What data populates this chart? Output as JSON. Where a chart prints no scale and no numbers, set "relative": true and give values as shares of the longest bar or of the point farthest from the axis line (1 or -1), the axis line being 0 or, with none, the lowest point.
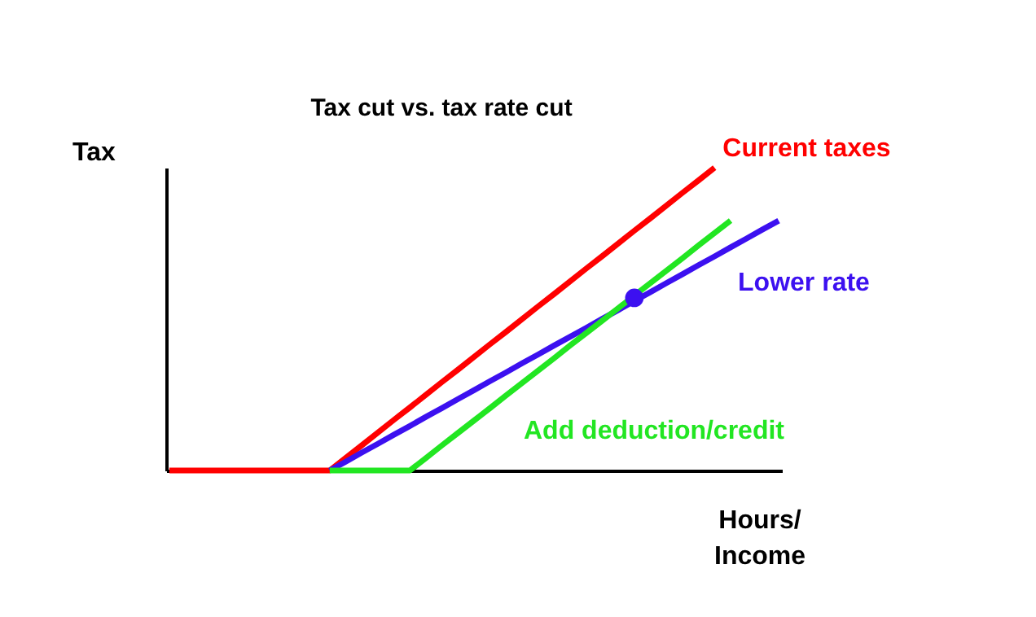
{
  "chart_data": {
    "type": "line",
    "title": "Tax cut vs. tax rate cut",
    "xlabel": "Hours/\nIncome",
    "ylabel": "Tax",
    "relative": true,
    "line_style": "solid",
    "categories": [
      null,
      null,
      null,
      null,
      null,
      null,
      null,
      null,
      null,
      null,
      null,
      null,
      null,
      null,
      null,
      null,
      null,
      null,
      null,
      null,
      null,
      null,
      null,
      null,
      null,
      null,
      null,
      null,
      null,
      null,
      null,
      null,
      null,
      null,
      null,
      null,
      null,
      null,
      null
    ],
    "series": [
      {
        "name": "Current taxes",
        "color": "#ff0000",
        "values": [
          0,
          0,
          0,
          0,
          0,
          0,
          0,
          0,
          0,
          0,
          0,
          0.042,
          0.083,
          0.125,
          0.167,
          0.208,
          0.25,
          0.292,
          0.333,
          0.375,
          0.417,
          0.458,
          0.5,
          0.542,
          0.583,
          0.625,
          0.667,
          0.708,
          0.75,
          0.792,
          0.833,
          0.875,
          0.917,
          0.958,
          1,
          null,
          null,
          null,
          null
        ]
      },
      {
        "name": "Lower rate",
        "color": "#3c10f0",
        "values": [
          null,
          null,
          null,
          null,
          null,
          null,
          null,
          null,
          null,
          null,
          0,
          0.029,
          0.059,
          0.088,
          0.118,
          0.147,
          0.177,
          0.206,
          0.236,
          0.265,
          0.295,
          0.324,
          0.354,
          0.383,
          0.413,
          0.442,
          0.471,
          0.501,
          0.53,
          0.56,
          0.589,
          0.619,
          0.648,
          0.678,
          0.707,
          0.737,
          0.766,
          0.796,
          0.825
        ]
      },
      {
        "name": "Add deduction/credit",
        "color": "#22e622",
        "values": [
          null,
          null,
          null,
          null,
          null,
          null,
          null,
          null,
          null,
          null,
          0,
          0,
          0,
          0,
          0,
          0,
          0.041,
          0.083,
          0.124,
          0.165,
          0.206,
          0.248,
          0.289,
          0.33,
          0.371,
          0.413,
          0.454,
          0.495,
          0.536,
          0.578,
          0.619,
          0.66,
          0.701,
          0.743,
          0.784,
          0.825,
          null,
          null,
          null
        ]
      },
      {
        "type": "line",
        "marker": "circle",
        "color": "#3c10f0",
        "values": [
          null,
          null,
          null,
          null,
          null,
          null,
          null,
          null,
          null,
          null,
          null,
          null,
          null,
          null,
          null,
          null,
          null,
          null,
          null,
          null,
          null,
          null,
          null,
          null,
          null,
          null,
          null,
          null,
          null,
          0.57,
          null,
          null,
          null,
          null,
          null,
          null,
          null,
          null,
          null
        ]
      }
    ]
  }
}
